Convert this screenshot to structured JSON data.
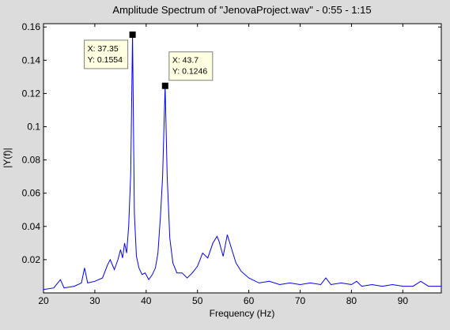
{
  "chart_data": {
    "type": "line",
    "title": "Amplitude Spectrum of \"JenovaProject.wav\" - 0:55 - 1:15",
    "xlabel": "Frequency (Hz)",
    "ylabel": "|Y(f)|",
    "xlim": [
      20,
      97.5
    ],
    "ylim": [
      0,
      0.162
    ],
    "x_ticks": [
      20,
      30,
      40,
      50,
      60,
      70,
      80,
      90
    ],
    "y_ticks": [
      0.02,
      0.04,
      0.06,
      0.08,
      0.1,
      0.12,
      0.14,
      0.16
    ],
    "grid": false,
    "line_color": "#0000ff",
    "series": [
      {
        "x": [
          20,
          22,
          23.3,
          24,
          26,
          27.4,
          28,
          28.6,
          30,
          31.5,
          32.5,
          33,
          33.8,
          34.5,
          35,
          35.4,
          35.8,
          36.2,
          36.6,
          37,
          37.35,
          37.7,
          38.1,
          38.6,
          39.2,
          39.8,
          40.5,
          41.2,
          41.8,
          42.3,
          42.8,
          43.2,
          43.7,
          44.1,
          44.6,
          45.2,
          46,
          47,
          48,
          49,
          50,
          51,
          52,
          53,
          53.8,
          54.2,
          55,
          55.8,
          56.5,
          57.5,
          58.5,
          60,
          62,
          64,
          66,
          68,
          70,
          72,
          74,
          75,
          76,
          78,
          80,
          81,
          82,
          84,
          86,
          88,
          90,
          92,
          93.5,
          95,
          97.5
        ],
        "y": [
          0.002,
          0.003,
          0.008,
          0.003,
          0.004,
          0.006,
          0.015,
          0.006,
          0.007,
          0.009,
          0.017,
          0.02,
          0.014,
          0.02,
          0.026,
          0.021,
          0.03,
          0.024,
          0.04,
          0.072,
          0.1554,
          0.048,
          0.022,
          0.015,
          0.011,
          0.012,
          0.008,
          0.011,
          0.015,
          0.024,
          0.047,
          0.07,
          0.1246,
          0.07,
          0.033,
          0.018,
          0.012,
          0.012,
          0.009,
          0.012,
          0.016,
          0.024,
          0.021,
          0.03,
          0.034,
          0.031,
          0.022,
          0.035,
          0.028,
          0.018,
          0.013,
          0.009,
          0.006,
          0.007,
          0.005,
          0.006,
          0.005,
          0.006,
          0.005,
          0.009,
          0.005,
          0.006,
          0.005,
          0.007,
          0.004,
          0.005,
          0.004,
          0.005,
          0.004,
          0.004,
          0.007,
          0.004,
          0.004
        ]
      }
    ],
    "datatips": [
      {
        "x": 37.35,
        "y": 0.1554,
        "line1": "X: 37.35",
        "line2": "Y: 0.1554"
      },
      {
        "x": 43.7,
        "y": 0.1246,
        "line1": "X: 43.7",
        "line2": "Y: 0.1246"
      }
    ]
  }
}
